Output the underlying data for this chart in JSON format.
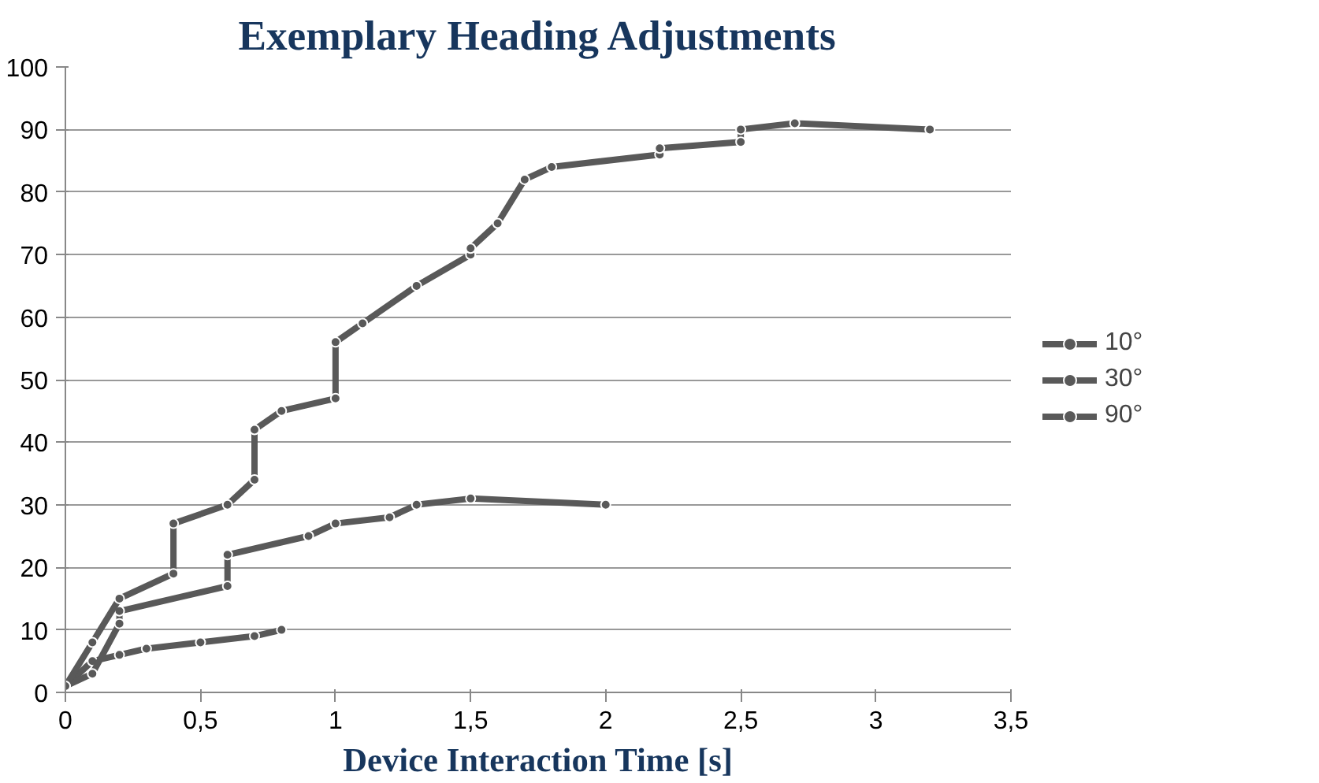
{
  "chart_data": {
    "type": "line",
    "title": "Exemplary Heading Adjustments",
    "xlabel": "Device Interaction Time [s]",
    "xlim": [
      0,
      3.5
    ],
    "xticks": [
      0,
      {
        "value": 0.5,
        "label": "0,5"
      },
      1,
      {
        "value": 1.5,
        "label": "1,5"
      },
      2,
      {
        "value": 2.5,
        "label": "2,5"
      },
      3,
      {
        "value": 3.5,
        "label": "3,5"
      }
    ],
    "ylim": [
      0,
      100
    ],
    "yticks": [
      0,
      10,
      20,
      30,
      40,
      50,
      60,
      70,
      80,
      90,
      100
    ],
    "grid": "y",
    "legend": "right",
    "marker": "circle",
    "line_style": "solid",
    "series": [
      {
        "name": "10°",
        "color": "#595959",
        "x": [
          0,
          0.1,
          0.2,
          0.3,
          0.5,
          0.7,
          0.8
        ],
        "values": [
          1,
          5,
          6,
          7,
          8,
          9,
          10
        ]
      },
      {
        "name": "30°",
        "color": "#595959",
        "x": [
          0,
          0.1,
          0.2,
          0.2,
          0.6,
          0.6,
          0.9,
          1.0,
          1.2,
          1.3,
          1.5,
          2.0
        ],
        "values": [
          1,
          3,
          11,
          13,
          17,
          22,
          25,
          27,
          28,
          30,
          31,
          30
        ]
      },
      {
        "name": "90°",
        "color": "#595959",
        "x": [
          0,
          0.1,
          0.2,
          0.4,
          0.4,
          0.6,
          0.7,
          0.7,
          0.8,
          1.0,
          1.0,
          1.1,
          1.3,
          1.5,
          1.5,
          1.6,
          1.7,
          1.8,
          2.2,
          2.2,
          2.5,
          2.5,
          2.7,
          3.2
        ],
        "values": [
          1,
          8,
          15,
          19,
          27,
          30,
          34,
          42,
          45,
          47,
          56,
          59,
          65,
          70,
          71,
          75,
          82,
          84,
          86,
          87,
          88,
          90,
          91,
          90
        ]
      }
    ]
  }
}
